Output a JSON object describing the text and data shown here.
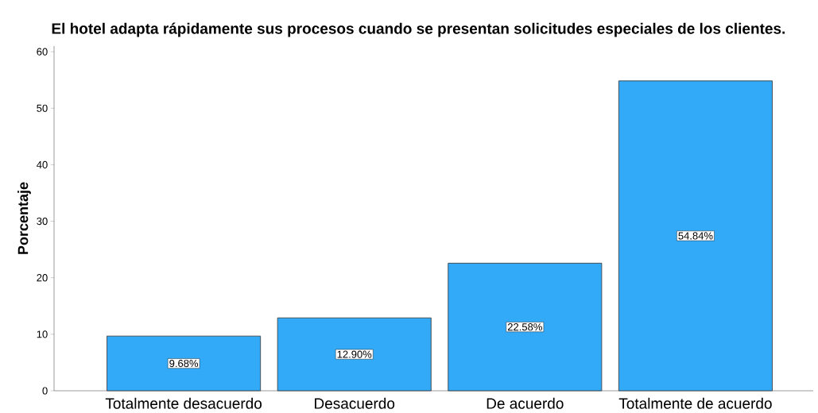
{
  "chart_data": {
    "type": "bar",
    "title": "El hotel adapta rápidamente sus procesos cuando se presentan solicitudes especiales de los clientes.",
    "ylabel": "Porcentaje",
    "categories": [
      "Totalmente desacuerdo",
      "Desacuerdo",
      "De acuerdo",
      "Totalmente de acuerdo"
    ],
    "values": [
      9.68,
      12.9,
      22.58,
      54.84
    ],
    "value_labels": [
      "9.68%",
      "12.90%",
      "22.58%",
      "54.84%"
    ],
    "color": "#33aaf8",
    "ylim": [
      0,
      61
    ],
    "yticks": [
      0,
      10,
      20,
      30,
      40,
      50,
      60
    ],
    "grid": false
  }
}
